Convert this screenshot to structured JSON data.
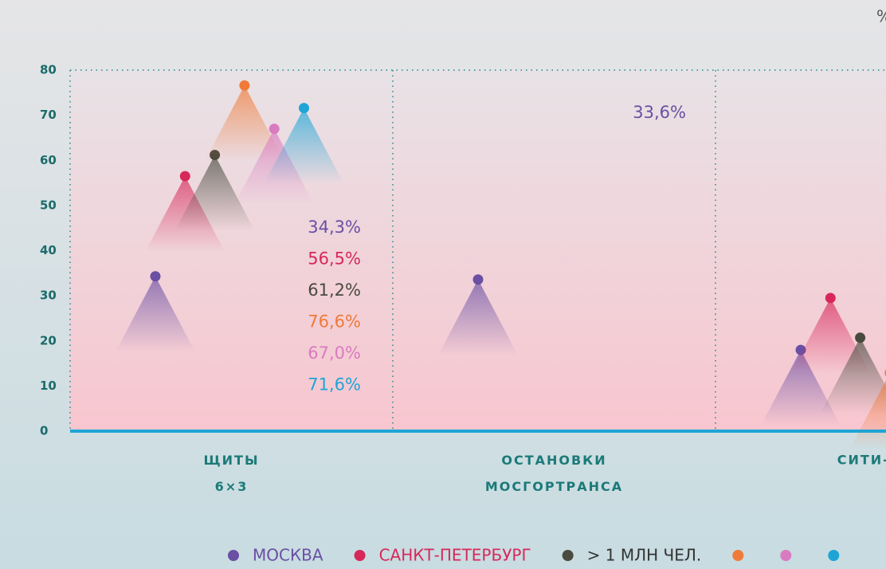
{
  "chart_data": {
    "type": "dot",
    "y_label": "%",
    "categories": [
      "ЩИТЫ 6×3",
      "ОСТАНОВКИ МОСГОРТРАНСА",
      "СИТИ-ФО"
    ],
    "ylim": [
      0,
      80
    ],
    "yticks": [
      0,
      10,
      20,
      30,
      40,
      50,
      60,
      70,
      80
    ],
    "grid": true,
    "series": [
      {
        "name": "МОСКВА",
        "color": "#6a4fa3",
        "values": [
          34.3,
          33.6,
          18.0
        ],
        "value_labels": [
          "34,3%",
          "33,6%",
          null
        ]
      },
      {
        "name": "САНКТ-ПЕТЕРБУРГ",
        "color": "#d8285a",
        "values": [
          56.5,
          null,
          29.5
        ],
        "value_labels": [
          "56,5%",
          null,
          null
        ]
      },
      {
        "name": "> 1 МЛН ЧЕЛ.",
        "color": "#4a4a3f",
        "values": [
          61.2,
          null,
          20.7
        ],
        "value_labels": [
          "61,2%",
          null,
          null
        ]
      },
      {
        "color": "#f07a38",
        "values": [
          76.6,
          null,
          12.9
        ],
        "value_labels": [
          "76,6%",
          null,
          null
        ]
      },
      {
        "color": "#d97bc0",
        "values": [
          67.0,
          null,
          null
        ],
        "value_labels": [
          "67,0%",
          null,
          null
        ]
      },
      {
        "color": "#1ea5d6",
        "values": [
          71.6,
          null,
          null
        ],
        "value_labels": [
          "71,6%",
          null,
          null
        ]
      }
    ]
  }
}
